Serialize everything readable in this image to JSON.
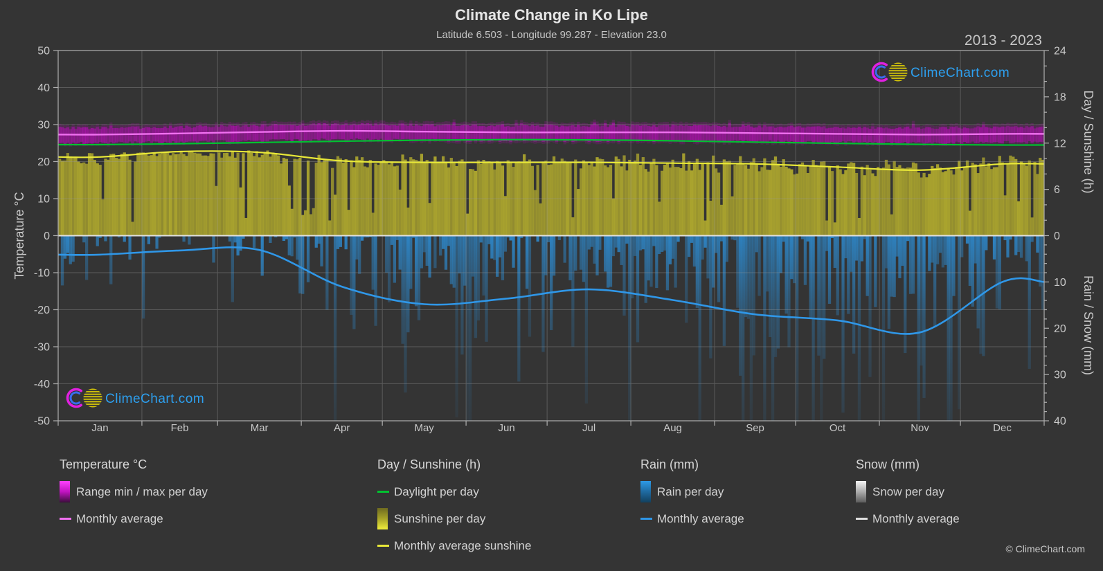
{
  "title": "Climate Change in Ko Lipe",
  "subtitle": "Latitude 6.503 - Longitude 99.287 - Elevation 23.0",
  "period": "2013 - 2023",
  "watermark": "ClimeChart.com",
  "copyright": "© ClimeChart.com",
  "axes": {
    "x_months": [
      "Jan",
      "Feb",
      "Mar",
      "Apr",
      "May",
      "Jun",
      "Jul",
      "Aug",
      "Sep",
      "Oct",
      "Nov",
      "Dec"
    ],
    "left": {
      "title": "Temperature °C",
      "ticks": [
        50,
        40,
        30,
        20,
        10,
        0,
        -10,
        -20,
        -30,
        -40,
        -50
      ],
      "range": [
        -50,
        50
      ]
    },
    "right_top": {
      "title": "Day / Sunshine (h)",
      "ticks": [
        24,
        18,
        12,
        6,
        0
      ],
      "range": [
        0,
        24
      ]
    },
    "right_bottom": {
      "title": "Rain / Snow (mm)",
      "ticks": [
        10,
        20,
        30,
        40
      ],
      "range": [
        0,
        40
      ]
    }
  },
  "legend": {
    "groups": [
      {
        "header": "Temperature °C",
        "items": [
          {
            "label": "Range min / max per day",
            "swatch": "gradient",
            "gradient": [
              "#ff40ff",
              "#c014c0",
              "#3c0d3c"
            ]
          },
          {
            "label": "Monthly average",
            "swatch": "line",
            "color": "#f070f0"
          }
        ]
      },
      {
        "header": "Day / Sunshine (h)",
        "items": [
          {
            "label": "Daylight per day",
            "swatch": "line",
            "color": "#00c230"
          },
          {
            "label": "Sunshine per day",
            "swatch": "gradient",
            "gradient": [
              "#6e6a20",
              "#a8a428",
              "#f0ee3c"
            ]
          },
          {
            "label": "Monthly average sunshine",
            "swatch": "line",
            "color": "#e8e838"
          }
        ]
      },
      {
        "header": "Rain (mm)",
        "items": [
          {
            "label": "Rain per day",
            "swatch": "gradient",
            "gradient": [
              "#2d9ae6",
              "#1f6aa0",
              "#12405e"
            ]
          },
          {
            "label": "Monthly average",
            "swatch": "line",
            "color": "#2f97e8"
          }
        ]
      },
      {
        "header": "Snow (mm)",
        "items": [
          {
            "label": "Snow per day",
            "swatch": "gradient",
            "gradient": [
              "#f4f4f4",
              "#ababab",
              "#5c5c5c"
            ]
          },
          {
            "label": "Monthly average",
            "swatch": "line",
            "color": "#e0e0e0"
          }
        ]
      }
    ]
  },
  "colors": {
    "background": "#343434",
    "grid": "#9a9a9a",
    "frame": "#b0b0b0",
    "text": "#c9c9c9",
    "temp_band": "#e000e0",
    "temp_line": "#f070f0",
    "daylight_line": "#00c230",
    "sun_bar": "#b3ac2e",
    "sun_line": "#e8e838",
    "rain_bar": "#2d8cd2",
    "rain_line": "#2f97e8",
    "snow_line": "#e0e0e0",
    "logo_blue": "#2da0f0",
    "logo_magenta": "#e020e0",
    "logo_inner_blue": "#3a6cf0",
    "logo_yellow": "#d9c908"
  },
  "chart_data": {
    "type": "climate-composite",
    "months": [
      "Jan",
      "Feb",
      "Mar",
      "Apr",
      "May",
      "Jun",
      "Jul",
      "Aug",
      "Sep",
      "Oct",
      "Nov",
      "Dec"
    ],
    "days_per_month": [
      31,
      28,
      31,
      30,
      31,
      30,
      31,
      31,
      30,
      31,
      30,
      31
    ],
    "series": [
      {
        "name": "temp_monthly_avg_c",
        "label": "Temperature monthly average (°C)",
        "values": [
          27.3,
          27.6,
          28.0,
          28.3,
          28.1,
          27.9,
          27.9,
          27.9,
          27.7,
          27.5,
          27.3,
          27.5
        ]
      },
      {
        "name": "temp_daily_min_c",
        "label": "Typical daily minimum temperature (°C)",
        "values": [
          25.0,
          25.3,
          25.7,
          26.0,
          25.8,
          25.6,
          25.6,
          25.6,
          25.4,
          25.2,
          25.0,
          25.2
        ]
      },
      {
        "name": "temp_daily_max_c",
        "label": "Typical daily maximum temperature (°C)",
        "values": [
          29.1,
          29.4,
          29.8,
          30.1,
          29.9,
          29.7,
          29.7,
          29.7,
          29.5,
          29.3,
          29.1,
          29.3
        ]
      },
      {
        "name": "daylight_h",
        "label": "Daylight per day (h)",
        "values": [
          11.8,
          11.92,
          12.08,
          12.25,
          12.38,
          12.45,
          12.42,
          12.3,
          12.13,
          11.97,
          11.83,
          11.75
        ]
      },
      {
        "name": "sunshine_monthly_avg_h",
        "label": "Monthly average sunshine (h)",
        "values": [
          10.2,
          10.9,
          10.8,
          9.7,
          9.5,
          9.5,
          9.5,
          9.4,
          9.3,
          8.9,
          8.5,
          9.3
        ]
      },
      {
        "name": "rain_monthly_avg_mm",
        "label": "Rain monthly average (mm/day)",
        "values": [
          4.1,
          3.2,
          3.1,
          11.0,
          14.8,
          13.6,
          11.6,
          13.9,
          17.0,
          18.3,
          20.9,
          10.0
        ]
      },
      {
        "name": "rain_dry_day_probability",
        "label": "Share of days without rain (render hint)",
        "values": [
          0.5,
          0.55,
          0.5,
          0.2,
          0.1,
          0.1,
          0.12,
          0.1,
          0.06,
          0.06,
          0.08,
          0.3
        ]
      },
      {
        "name": "snow_monthly_avg_mm",
        "label": "Snow monthly average (mm/day)",
        "values": [
          0,
          0,
          0,
          0,
          0,
          0,
          0,
          0,
          0,
          0,
          0,
          0
        ]
      }
    ],
    "ylim_temperature": [
      -50,
      50
    ],
    "ylim_day_sunshine": [
      0,
      24
    ],
    "ylim_rain_snow": [
      0,
      40
    ],
    "grid": true,
    "legend_position": "bottom"
  }
}
